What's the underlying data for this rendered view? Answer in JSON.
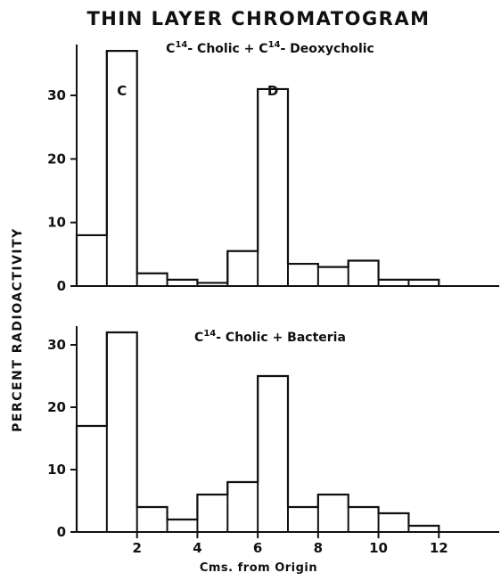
{
  "title": "THIN LAYER CHROMATOGRAM",
  "ylabel": "PERCENT RADIOACTIVITY",
  "xlabel": "Cms. from Origin",
  "chart_data": [
    {
      "type": "histogram",
      "subtitle_parts": [
        {
          "text": "C",
          "sup": false
        },
        {
          "text": "14",
          "sup": true
        },
        {
          "text": "- Cholic + C",
          "sup": false
        },
        {
          "text": "14",
          "sup": true
        },
        {
          "text": "- Deoxycholic",
          "sup": false
        }
      ],
      "bin_edges": [
        0,
        1,
        2,
        3,
        4,
        5,
        6,
        7,
        8,
        9,
        10,
        11,
        12
      ],
      "values": [
        8,
        37,
        2,
        1,
        0.5,
        5.5,
        31,
        3.5,
        3,
        4,
        1,
        1
      ],
      "xlim": [
        0,
        14
      ],
      "ylim": [
        0,
        38
      ],
      "yticks": [
        0,
        10,
        20,
        30
      ],
      "xticks": [],
      "annotations": [
        {
          "text": "C",
          "x": 1.5,
          "y": 30
        },
        {
          "text": "D",
          "x": 6.5,
          "y": 30
        }
      ]
    },
    {
      "type": "histogram",
      "subtitle_parts": [
        {
          "text": "C",
          "sup": false
        },
        {
          "text": "14",
          "sup": true
        },
        {
          "text": "- Cholic + Bacteria",
          "sup": false
        }
      ],
      "bin_edges": [
        0,
        1,
        2,
        3,
        4,
        5,
        6,
        7,
        8,
        9,
        10,
        11,
        12
      ],
      "values": [
        17,
        32,
        4,
        2,
        6,
        8,
        25,
        4,
        6,
        4,
        3,
        1
      ],
      "xlim": [
        0,
        14
      ],
      "ylim": [
        0,
        33
      ],
      "yticks": [
        0,
        10,
        20,
        30
      ],
      "xticks": [
        2,
        4,
        6,
        8,
        10,
        12
      ],
      "annotations": []
    }
  ]
}
